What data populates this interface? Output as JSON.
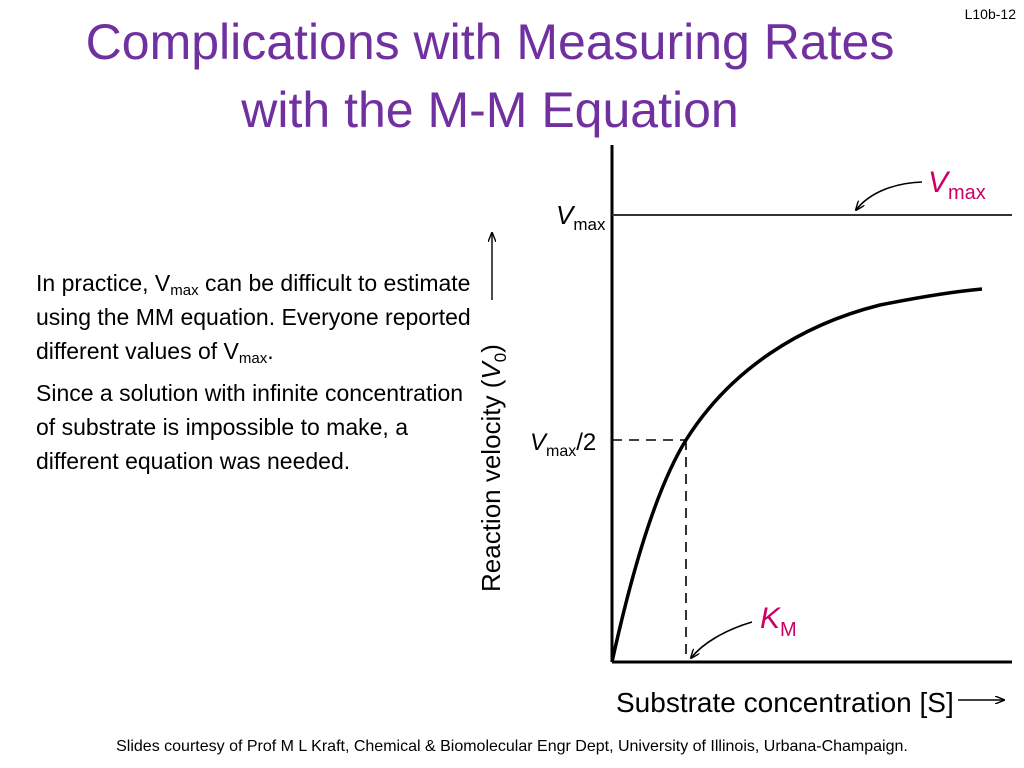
{
  "slide_number": "L10b-12",
  "title": {
    "line1": "Complications with Measuring Rates",
    "line2": "with the M-M Equation"
  },
  "body": {
    "p1_part1": "In practice, V",
    "p1_sub1": "max",
    "p1_part2": " can be difficult to estimate using the MM equation. Everyone reported different values of  V",
    "p1_sub2": "max",
    "p1_part3": ".",
    "p2": "Since a solution with infinite concentration of substrate is impossible to make, a different equation was needed."
  },
  "diagram": {
    "colors": {
      "axis": "#000000",
      "curve": "#000000",
      "annotation": "#cc0066",
      "asymptote": "#333333"
    },
    "y_axis_label_text": "Reaction velocity (",
    "y_axis_label_var": "V",
    "y_axis_label_sub": "0",
    "y_axis_label_close": ")",
    "x_axis_label": "Substrate concentration [S]",
    "vmax_tick_var": "V",
    "vmax_tick_sub": "max",
    "half_vmax_var": "V",
    "half_vmax_sub": "max",
    "half_vmax_suffix": "/2",
    "vmax_callout_var": "V",
    "vmax_callout_sub": "max",
    "km_callout_var": "K",
    "km_callout_sub": "M"
  },
  "footer": "Slides courtesy of Prof M L Kraft, Chemical & Biomolecular Engr Dept, University of Illinois, Urbana-Champaign."
}
